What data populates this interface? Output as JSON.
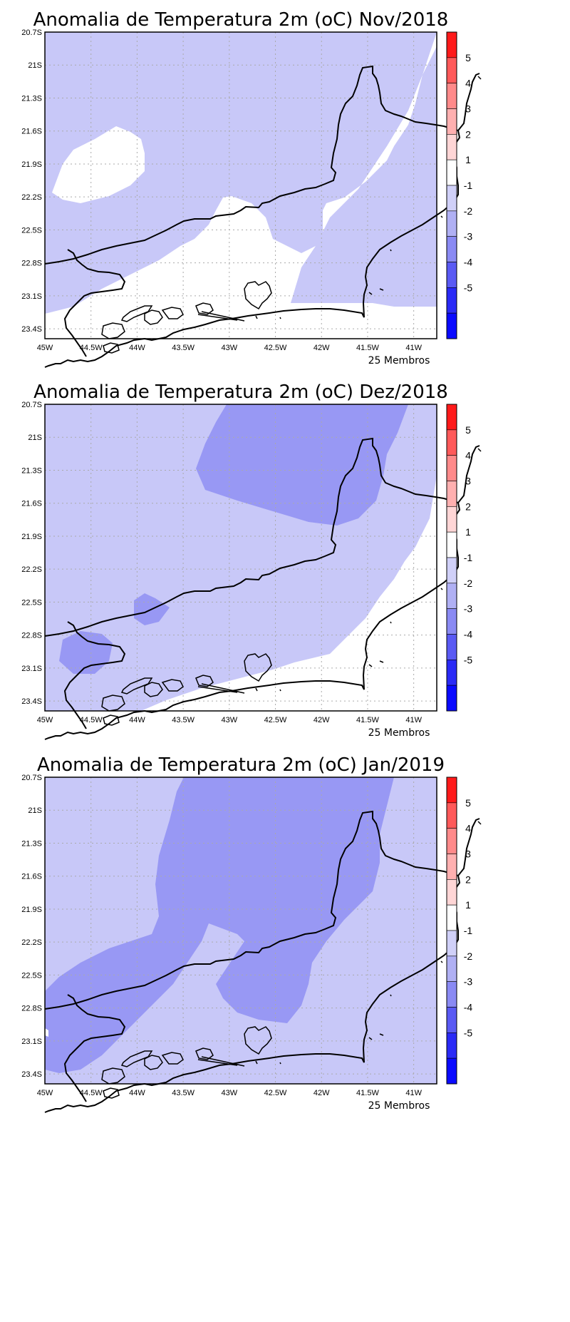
{
  "colors": {
    "band_0_-1": "#ffffff",
    "band_-1_-2": "#c8c8f8",
    "band_-2_-3": "#9898f4",
    "coast_line": "#000000",
    "grid": "#aaaaaa"
  },
  "colorbar": {
    "levels": [
      "5",
      "4",
      "3",
      "2",
      "1",
      "-1",
      "-2",
      "-3",
      "-4",
      "-5"
    ],
    "colors": [
      "#ff1a1a",
      "#ff5a5a",
      "#ff8a8a",
      "#ffb0b0",
      "#ffd6d6",
      "#ffffff",
      "#d0d0f8",
      "#b0b0f4",
      "#8a8af4",
      "#5a5af4",
      "#2a2af6",
      "#0a0aff"
    ]
  },
  "axes": {
    "lat_ticks": [
      "20.7S",
      "21S",
      "21.3S",
      "21.6S",
      "21.9S",
      "22.2S",
      "22.5S",
      "22.8S",
      "23.1S",
      "23.4S"
    ],
    "lon_ticks": [
      "45W",
      "44.5W",
      "44W",
      "43.5W",
      "43W",
      "42.5W",
      "42W",
      "41.5W",
      "41W"
    ],
    "lat_range": [
      -23.5,
      -20.7
    ],
    "lon_range": [
      -45,
      -40.75
    ]
  },
  "panels": [
    {
      "id": "nov-2018",
      "title": "Anomalia de Temperatura 2m (oC) Nov/2018",
      "footer": "25 Membros",
      "dominant_range": "-1 to -2"
    },
    {
      "id": "dez-2018",
      "title": "Anomalia de Temperatura 2m (oC) Dez/2018",
      "footer": "25 Membros",
      "dominant_range": "-1 to -2"
    },
    {
      "id": "jan-2019",
      "title": "Anomalia de Temperatura 2m (oC) Jan/2019",
      "footer": "25 Membros",
      "dominant_range": "-2 to -3"
    }
  ]
}
